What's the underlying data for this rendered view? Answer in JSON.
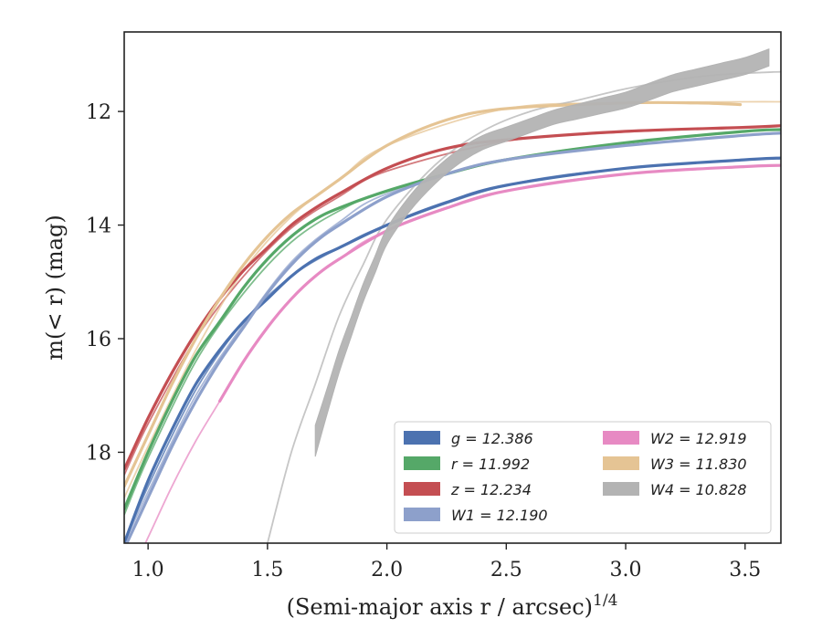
{
  "chart_data": {
    "type": "line",
    "xlabel": "(Semi-major axis r / arcsec)",
    "xlabel_exponent": "1/4",
    "ylabel": "m(< r) (mag)",
    "xlim": [
      0.9,
      3.65
    ],
    "ylim": [
      19.6,
      10.6
    ],
    "y_inverted": true,
    "x_ticks": [
      "1.0",
      "1.5",
      "2.0",
      "2.5",
      "3.0",
      "3.5"
    ],
    "x_tick_values": [
      1.0,
      1.5,
      2.0,
      2.5,
      3.0,
      3.5
    ],
    "y_ticks": [
      "12",
      "14",
      "16",
      "18"
    ],
    "y_tick_values": [
      12,
      14,
      16,
      18
    ],
    "grid": false,
    "legend_location": "lower-right",
    "legend_columns": 2,
    "series": [
      {
        "name": "g = 12.386",
        "color": "#4c72b0",
        "band_x": [
          0.9,
          1.0,
          1.1,
          1.2,
          1.3,
          1.4,
          1.5,
          1.6,
          1.7,
          1.8,
          2.0,
          2.25,
          2.5,
          3.0,
          3.5,
          3.65
        ],
        "band_y": [
          19.6,
          18.5,
          17.6,
          16.8,
          16.2,
          15.7,
          15.3,
          14.9,
          14.6,
          14.4,
          14.0,
          13.6,
          13.3,
          13.0,
          12.85,
          12.82
        ],
        "model_x": [
          0.9,
          1.0,
          1.2,
          1.4,
          1.6,
          1.8,
          2.0,
          2.5,
          3.0,
          3.5,
          3.65
        ],
        "model_y": [
          19.6,
          18.6,
          16.9,
          15.7,
          14.9,
          14.4,
          14.0,
          13.3,
          13.0,
          12.85,
          12.82
        ]
      },
      {
        "name": "r = 11.992",
        "color": "#55a868",
        "band_x": [
          0.9,
          1.0,
          1.1,
          1.2,
          1.3,
          1.4,
          1.5,
          1.6,
          1.7,
          1.8,
          2.0,
          2.25,
          2.5,
          3.0,
          3.5,
          3.65
        ],
        "band_y": [
          19.0,
          18.0,
          17.1,
          16.3,
          15.7,
          15.1,
          14.6,
          14.2,
          13.9,
          13.7,
          13.4,
          13.1,
          12.85,
          12.55,
          12.35,
          12.32
        ],
        "model_x": [
          0.9,
          1.0,
          1.2,
          1.4,
          1.6,
          1.8,
          2.0,
          2.5,
          3.0,
          3.5,
          3.65
        ],
        "model_y": [
          19.1,
          18.1,
          16.4,
          15.2,
          14.3,
          13.75,
          13.4,
          12.85,
          12.55,
          12.35,
          12.32
        ]
      },
      {
        "name": "z = 12.234",
        "color": "#c44e52",
        "band_x": [
          0.9,
          1.0,
          1.1,
          1.2,
          1.3,
          1.4,
          1.5,
          1.6,
          1.7,
          1.8,
          2.0,
          2.25,
          2.5,
          3.0,
          3.5,
          3.65
        ],
        "band_y": [
          18.3,
          17.4,
          16.6,
          15.9,
          15.3,
          14.8,
          14.4,
          14.0,
          13.7,
          13.45,
          13.0,
          12.65,
          12.5,
          12.35,
          12.28,
          12.25
        ],
        "model_x": [
          0.9,
          1.0,
          1.2,
          1.4,
          1.6,
          1.8,
          2.0,
          2.5,
          3.0,
          3.5,
          3.65
        ],
        "model_y": [
          18.4,
          17.5,
          16.0,
          14.9,
          14.05,
          13.5,
          13.05,
          12.52,
          12.36,
          12.28,
          12.25
        ]
      },
      {
        "name": "W1 = 12.190",
        "color": "#8da0cb",
        "band_x": [
          0.9,
          1.0,
          1.1,
          1.2,
          1.3,
          1.4,
          1.5,
          1.6,
          1.7,
          1.8,
          2.0,
          2.25,
          2.5,
          3.0,
          3.5,
          3.65
        ],
        "band_y": [
          19.7,
          18.8,
          17.9,
          17.1,
          16.4,
          15.8,
          15.2,
          14.7,
          14.3,
          14.0,
          13.5,
          13.1,
          12.85,
          12.6,
          12.42,
          12.38
        ],
        "model_x": [
          0.9,
          1.0,
          1.2,
          1.4,
          1.6,
          1.8,
          2.0,
          2.5,
          3.0,
          3.5,
          3.65
        ],
        "model_y": [
          19.6,
          18.7,
          17.0,
          15.75,
          14.65,
          13.95,
          13.45,
          12.85,
          12.6,
          12.42,
          12.38
        ]
      },
      {
        "name": "W2 = 12.919",
        "color": "#e78ac3",
        "band_x": [
          1.3,
          1.4,
          1.5,
          1.6,
          1.7,
          1.8,
          2.0,
          2.25,
          2.5,
          3.0,
          3.5,
          3.65
        ],
        "band_y": [
          17.1,
          16.4,
          15.8,
          15.3,
          14.9,
          14.6,
          14.1,
          13.7,
          13.4,
          13.1,
          12.97,
          12.95
        ],
        "model_x": [
          0.9,
          1.0,
          1.1,
          1.2,
          1.3,
          1.4,
          1.6,
          1.8,
          2.0,
          2.5,
          3.0,
          3.5,
          3.65
        ],
        "model_y": [
          20.4,
          19.5,
          18.6,
          17.8,
          17.1,
          16.4,
          15.3,
          14.6,
          14.1,
          13.4,
          13.1,
          12.97,
          12.95
        ]
      },
      {
        "name": "W3 = 11.830",
        "color": "#e5c494",
        "band_x": [
          0.9,
          1.0,
          1.1,
          1.2,
          1.3,
          1.4,
          1.5,
          1.6,
          1.7,
          1.8,
          2.0,
          2.25,
          2.5,
          3.0,
          3.3,
          3.48
        ],
        "band_y": [
          18.6,
          17.7,
          16.8,
          16.0,
          15.3,
          14.7,
          14.2,
          13.8,
          13.5,
          13.2,
          12.6,
          12.15,
          11.95,
          11.85,
          11.85,
          11.88
        ],
        "model_x": [
          0.9,
          1.0,
          1.2,
          1.4,
          1.6,
          1.8,
          2.0,
          2.5,
          3.0,
          3.5,
          3.65
        ],
        "model_y": [
          18.8,
          17.9,
          16.2,
          14.8,
          13.85,
          13.2,
          12.6,
          11.95,
          11.85,
          11.83,
          11.83
        ]
      },
      {
        "name": "W4 = 10.828",
        "color": "#b3b3b3",
        "band_x": [
          1.7,
          1.75,
          1.8,
          1.85,
          1.9,
          1.95,
          2.0,
          2.1,
          2.2,
          2.3,
          2.4,
          2.5,
          2.6,
          2.7,
          2.8,
          2.9,
          3.0,
          3.1,
          3.2,
          3.3,
          3.4,
          3.5,
          3.6
        ],
        "band_y": [
          17.8,
          17.1,
          16.4,
          15.8,
          15.2,
          14.7,
          14.2,
          13.6,
          13.15,
          12.8,
          12.55,
          12.4,
          12.25,
          12.1,
          12.0,
          11.9,
          11.8,
          11.65,
          11.5,
          11.4,
          11.3,
          11.2,
          11.05
        ],
        "band_width": [
          0.55,
          0.45,
          0.4,
          0.35,
          0.32,
          0.3,
          0.28,
          0.27,
          0.26,
          0.25,
          0.25,
          0.25,
          0.25,
          0.25,
          0.26,
          0.27,
          0.28,
          0.3,
          0.3,
          0.3,
          0.3,
          0.3,
          0.3
        ],
        "model_x": [
          1.5,
          1.6,
          1.7,
          1.8,
          1.9,
          2.0,
          2.2,
          2.4,
          2.6,
          2.8,
          3.0,
          3.2,
          3.4,
          3.65
        ],
        "model_y": [
          19.6,
          18.0,
          16.8,
          15.6,
          14.7,
          13.9,
          12.95,
          12.35,
          12.0,
          11.8,
          11.6,
          11.45,
          11.35,
          11.3
        ]
      }
    ]
  }
}
